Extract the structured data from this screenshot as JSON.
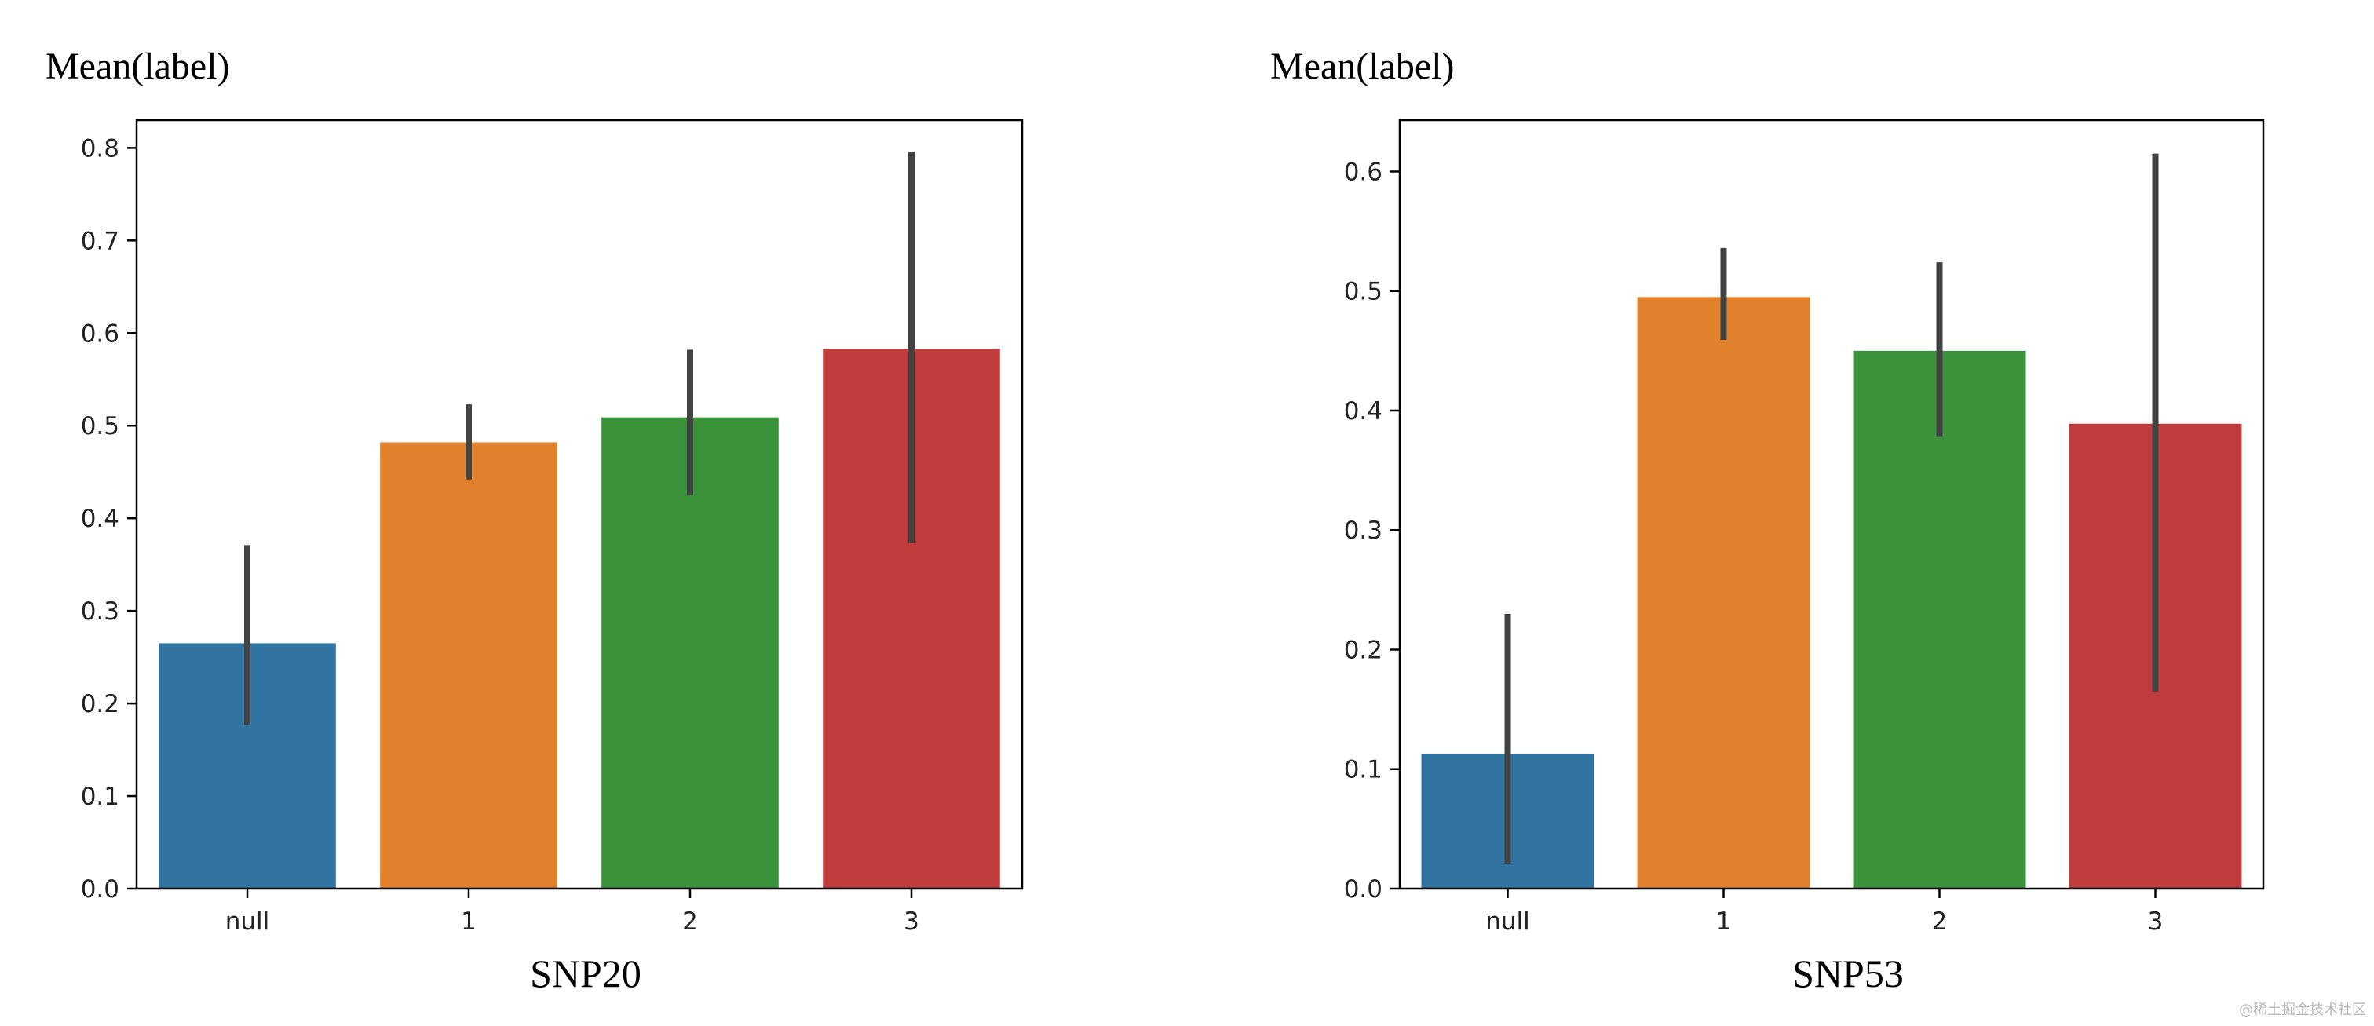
{
  "chart_data": [
    {
      "type": "bar",
      "title": "",
      "ylabel": "Mean(label)",
      "xlabel": "SNP20",
      "categories": [
        "null",
        "1",
        "2",
        "3"
      ],
      "values": [
        0.265,
        0.482,
        0.509,
        0.583
      ],
      "error_low": [
        0.177,
        0.442,
        0.425,
        0.373
      ],
      "error_high": [
        0.371,
        0.523,
        0.582,
        0.796
      ],
      "colors": [
        "#3274a1",
        "#e1812c",
        "#3a923a",
        "#c03d3e"
      ],
      "ylim": [
        0.0,
        0.83
      ],
      "yticks": [
        "0.0",
        "0.1",
        "0.2",
        "0.3",
        "0.4",
        "0.5",
        "0.6",
        "0.7",
        "0.8"
      ],
      "grid": false
    },
    {
      "type": "bar",
      "title": "",
      "ylabel": "Mean(label)",
      "xlabel": "SNP53",
      "categories": [
        "null",
        "1",
        "2",
        "3"
      ],
      "values": [
        0.113,
        0.495,
        0.45,
        0.389
      ],
      "error_low": [
        0.021,
        0.459,
        0.378,
        0.165
      ],
      "error_high": [
        0.23,
        0.536,
        0.524,
        0.615
      ],
      "colors": [
        "#3274a1",
        "#e1812c",
        "#3a923a",
        "#c03d3e"
      ],
      "ylim": [
        0.0,
        0.643
      ],
      "yticks": [
        "0.0",
        "0.1",
        "0.2",
        "0.3",
        "0.4",
        "0.5",
        "0.6"
      ],
      "grid": false
    }
  ],
  "watermark": "@稀土掘金技术社区"
}
